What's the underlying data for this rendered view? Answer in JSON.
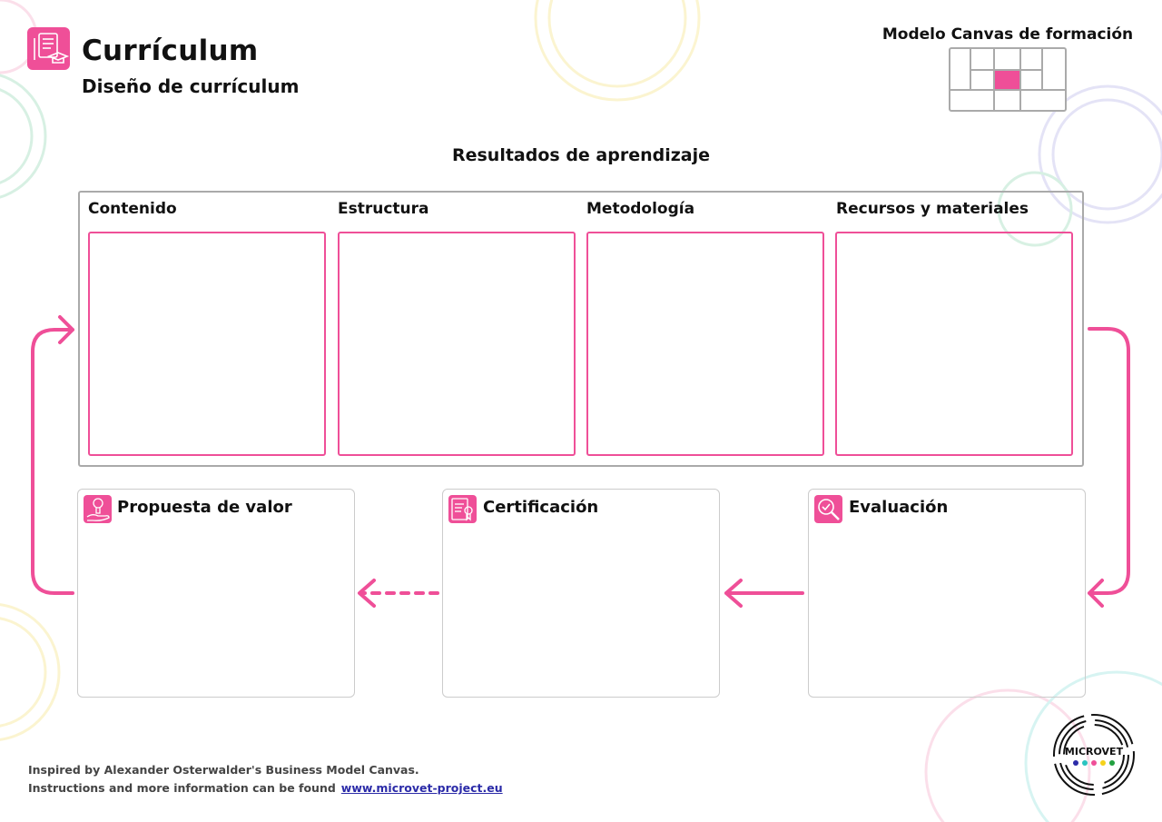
{
  "header": {
    "title": "Currículum",
    "subtitle": "Diseño de currículum",
    "model_title": "Modelo Canvas de formación"
  },
  "main": {
    "section_title": "Resultados de aprendizaje",
    "columns": [
      {
        "label": "Contenido"
      },
      {
        "label": "Estructura"
      },
      {
        "label": "Metodología"
      },
      {
        "label": "Recursos y materiales"
      }
    ],
    "cards": [
      {
        "label": "Propuesta de valor",
        "icon": "value-hand-icon"
      },
      {
        "label": "Certificación",
        "icon": "certificate-icon"
      },
      {
        "label": "Evaluación",
        "icon": "magnifier-check-icon"
      }
    ]
  },
  "footer": {
    "line1": "Inspired by Alexander Osterwalder's Business Model Canvas.",
    "line2": "Instructions and more information can be found",
    "link": "www.microvet-project.eu"
  },
  "logo": {
    "text": "MICROVET"
  },
  "colors": {
    "accent": "#ef4f98",
    "border": "#aaaaaa",
    "link": "#2b2ba8"
  }
}
